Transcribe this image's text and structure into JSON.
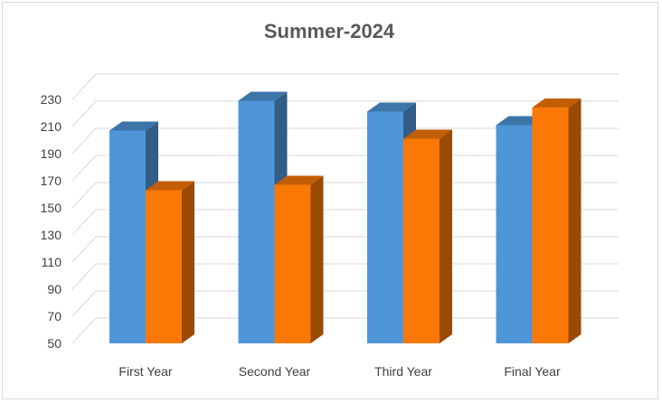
{
  "chart_data": {
    "type": "bar",
    "title": "Summer-2024",
    "categories": [
      "First Year",
      "Second Year",
      "Third Year",
      "Final Year"
    ],
    "series": [
      {
        "values": [
          207,
          229,
          221,
          211
        ],
        "color": "#4f96d9"
      },
      {
        "values": [
          163,
          167,
          201,
          224
        ],
        "color": "#f97806"
      }
    ],
    "yticks": [
      50,
      70,
      90,
      110,
      130,
      150,
      170,
      190,
      210,
      230
    ],
    "ylim": [
      50,
      230
    ],
    "grid": true,
    "legend": "none",
    "style": "3d"
  }
}
